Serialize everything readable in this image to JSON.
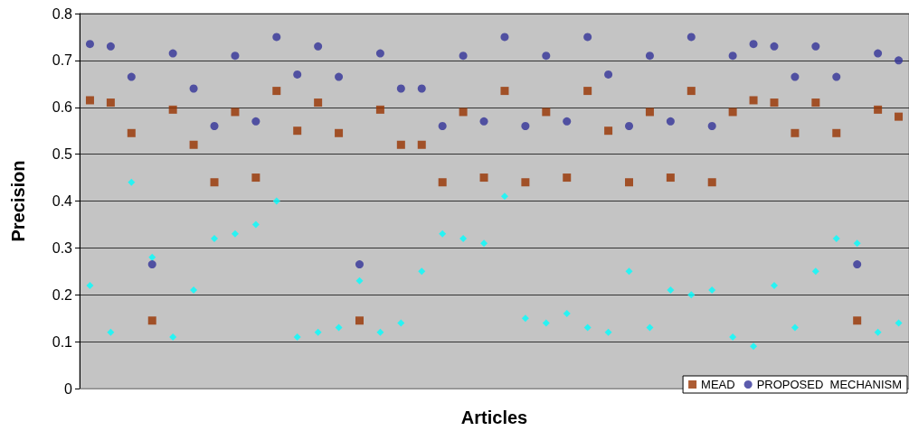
{
  "chart_data": {
    "type": "scatter",
    "xlabel": "Articles",
    "ylabel": "Precision",
    "categories": [
      null,
      null,
      null,
      null,
      null,
      null,
      null,
      null,
      null,
      null,
      null,
      null,
      null,
      null,
      null,
      null,
      null,
      null,
      null,
      null,
      null,
      null,
      null,
      null,
      null,
      null,
      null,
      null,
      null,
      null,
      null,
      null,
      null,
      null,
      null,
      null,
      null,
      null,
      null,
      null
    ],
    "series": [
      {
        "color": "#00ffff",
        "marker": "diamond",
        "values": [
          0.22,
          0.12,
          0.44,
          0.28,
          0.11,
          0.21,
          0.32,
          0.33,
          0.35,
          0.4,
          0.11,
          0.12,
          0.13,
          0.23,
          0.12,
          0.14,
          0.25,
          0.33,
          0.32,
          0.31,
          0.41,
          0.15,
          0.14,
          0.16,
          0.13,
          0.12,
          0.25,
          0.13,
          0.21,
          0.2,
          0.21,
          0.11,
          0.09,
          0.22,
          0.13,
          0.25,
          0.32,
          0.31,
          0.12,
          0.14
        ]
      },
      {
        "name": "MEAD",
        "color": "#993300",
        "marker": "square",
        "values": [
          0.615,
          0.61,
          0.545,
          0.145,
          0.595,
          0.52,
          0.44,
          0.59,
          0.45,
          0.635,
          0.55,
          0.61,
          0.545,
          0.145,
          0.595,
          0.52,
          0.52,
          0.44,
          0.59,
          0.45,
          0.635,
          0.44,
          0.59,
          0.45,
          0.635,
          0.55,
          0.44,
          0.59,
          0.45,
          0.635,
          0.44,
          0.59,
          0.615,
          0.61,
          0.545,
          0.61,
          0.545,
          0.145,
          0.595,
          0.58
        ]
      },
      {
        "name": "PROPOSED  MECHANISM",
        "color": "#333399",
        "marker": "circle",
        "values": [
          0.735,
          0.73,
          0.665,
          0.265,
          0.715,
          0.64,
          0.56,
          0.71,
          0.57,
          0.75,
          0.67,
          0.73,
          0.665,
          0.265,
          0.715,
          0.64,
          0.64,
          0.56,
          0.71,
          0.57,
          0.75,
          0.56,
          0.71,
          0.57,
          0.75,
          0.67,
          0.56,
          0.71,
          0.57,
          0.75,
          0.56,
          0.71,
          0.735,
          0.73,
          0.665,
          0.73,
          0.665,
          0.265,
          0.715,
          0.7
        ]
      }
    ],
    "ylim": [
      0,
      0.8
    ],
    "yticks": [
      0,
      0.1,
      0.2,
      0.3,
      0.4,
      0.5,
      0.6,
      0.7,
      0.8
    ],
    "grid": "y",
    "legend": "bottom right"
  }
}
